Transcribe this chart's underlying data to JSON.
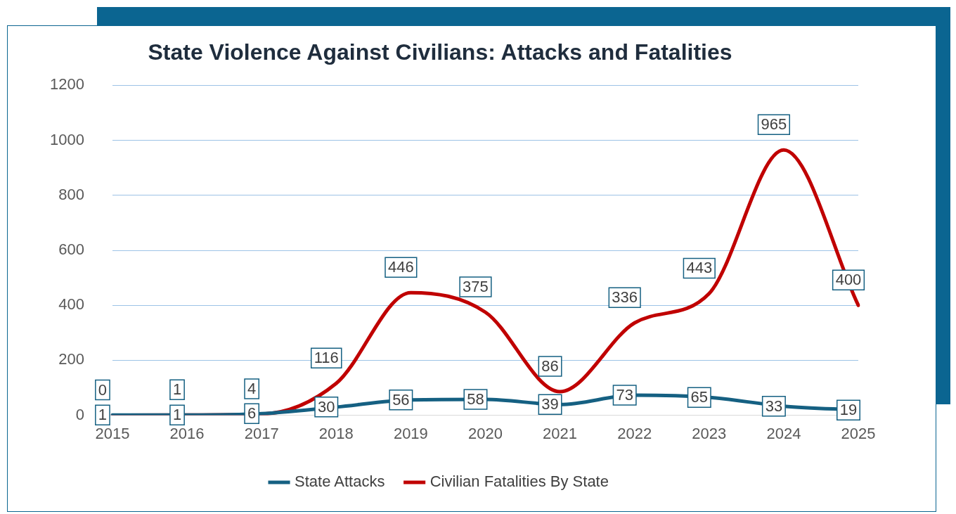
{
  "chart_data": {
    "type": "line",
    "title": "State Violence Against Civilians: Attacks and Fatalities",
    "categories": [
      "2015",
      "2016",
      "2017",
      "2018",
      "2019",
      "2020",
      "2021",
      "2022",
      "2023",
      "2024",
      "2025"
    ],
    "series": [
      {
        "name": "State Attacks",
        "color": "#156082",
        "values": [
          1,
          1,
          6,
          30,
          56,
          58,
          39,
          73,
          65,
          33,
          19
        ]
      },
      {
        "name": "Civilian Fatalities By State",
        "color": "#c00000",
        "values": [
          0,
          1,
          4,
          116,
          446,
          375,
          86,
          336,
          443,
          965,
          400
        ]
      }
    ],
    "ylim": [
      0,
      1200
    ],
    "yticks": [
      0,
      200,
      400,
      600,
      800,
      1000,
      1200
    ],
    "grid": "y",
    "legend": "bottom",
    "data_labels": true,
    "marker": "none",
    "line_style": "solid"
  }
}
